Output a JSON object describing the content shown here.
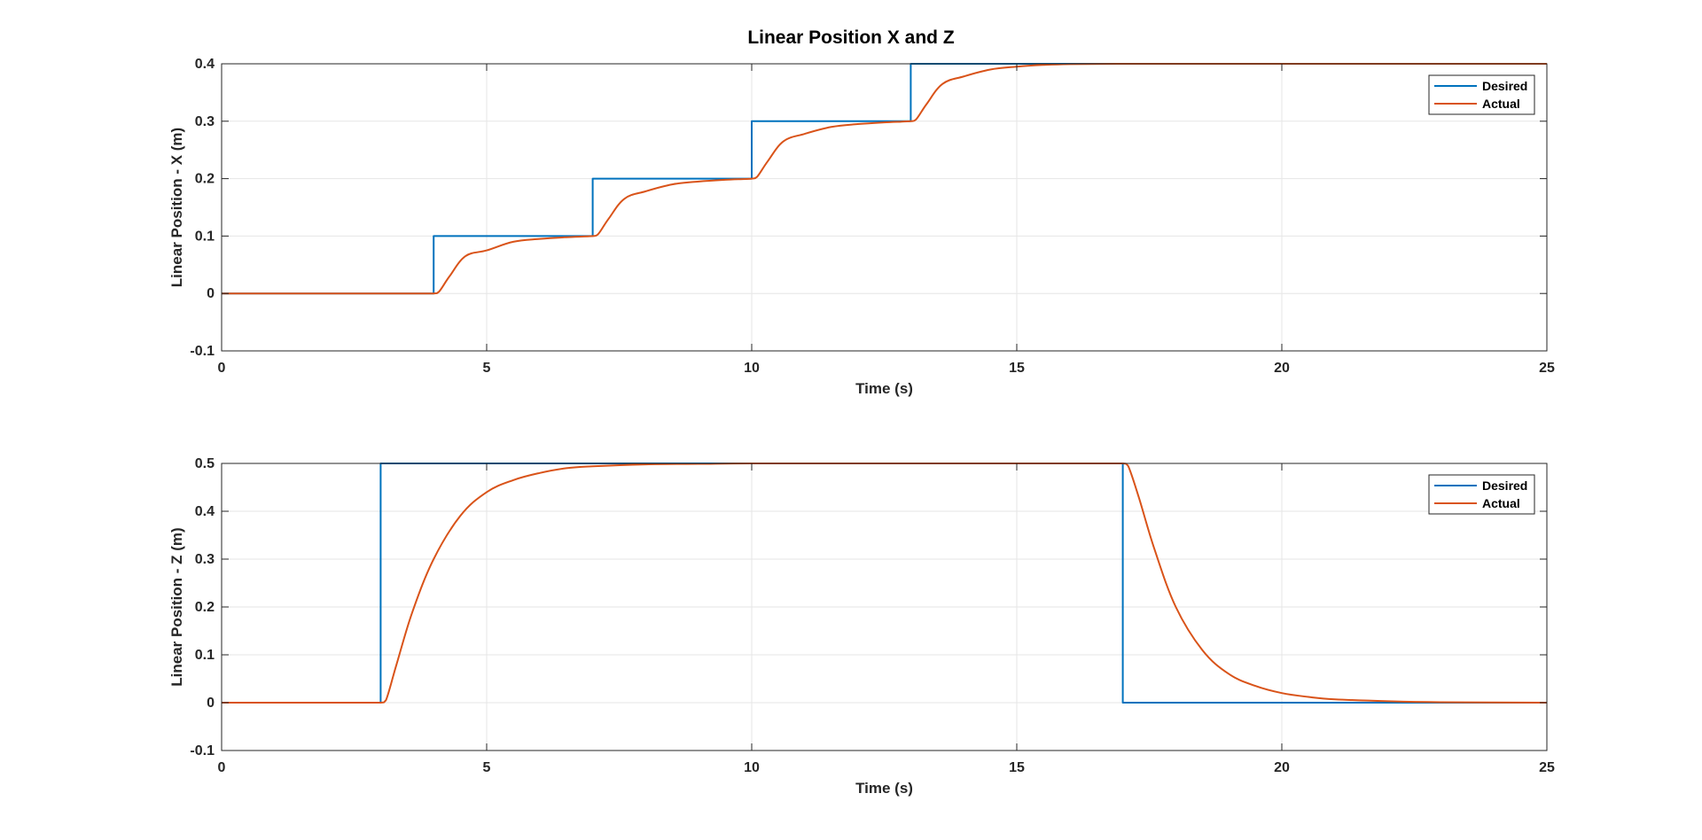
{
  "figure": {
    "title": "Linear Position X and Z"
  },
  "colors": {
    "desired": "#0072BD",
    "actual": "#D95319",
    "grid": "#e6e6e6",
    "axis": "#262626"
  },
  "chart_data": [
    {
      "type": "line",
      "title": "Linear Position X and Z",
      "xlabel": "Time (s)",
      "ylabel": "Linear Position - X (m)",
      "xlim": [
        0,
        25
      ],
      "ylim": [
        -0.1,
        0.4
      ],
      "xticks": [
        0,
        5,
        10,
        15,
        20,
        25
      ],
      "yticks": [
        -0.1,
        0,
        0.1,
        0.2,
        0.3,
        0.4
      ],
      "xtick_labels": [
        "0",
        "5",
        "10",
        "15",
        "20",
        "25"
      ],
      "ytick_labels": [
        "-0.1",
        "0",
        "0.1",
        "0.2",
        "0.3",
        "0.4"
      ],
      "grid": true,
      "legend_position": "top-right",
      "series": [
        {
          "name": "Desired",
          "x": [
            0,
            4,
            4,
            7,
            7,
            10,
            10,
            13,
            13,
            25
          ],
          "y": [
            0,
            0,
            0.1,
            0.1,
            0.2,
            0.2,
            0.3,
            0.3,
            0.4,
            0.4
          ]
        },
        {
          "name": "Actual",
          "x": [
            0,
            4,
            4.1,
            4.3,
            4.6,
            5.0,
            5.5,
            6.0,
            6.5,
            7.0,
            7.1,
            7.3,
            7.6,
            8.0,
            8.5,
            9.0,
            9.5,
            10.0,
            10.1,
            10.3,
            10.6,
            11.0,
            11.5,
            12.0,
            12.5,
            13.0,
            13.1,
            13.3,
            13.6,
            14.0,
            14.5,
            15.0,
            15.5,
            16.0,
            17.0,
            18.0,
            25
          ],
          "y": [
            0,
            0,
            0.003,
            0.03,
            0.065,
            0.075,
            0.09,
            0.095,
            0.098,
            0.1,
            0.103,
            0.13,
            0.165,
            0.178,
            0.19,
            0.195,
            0.198,
            0.2,
            0.203,
            0.23,
            0.265,
            0.278,
            0.29,
            0.295,
            0.298,
            0.3,
            0.303,
            0.33,
            0.365,
            0.378,
            0.39,
            0.395,
            0.398,
            0.3995,
            0.4,
            0.4,
            0.4
          ]
        }
      ]
    },
    {
      "type": "line",
      "title": "",
      "xlabel": "Time (s)",
      "ylabel": "Linear Position - Z (m)",
      "xlim": [
        0,
        25
      ],
      "ylim": [
        -0.1,
        0.5
      ],
      "xticks": [
        0,
        5,
        10,
        15,
        20,
        25
      ],
      "yticks": [
        -0.1,
        0,
        0.1,
        0.2,
        0.3,
        0.4,
        0.5
      ],
      "xtick_labels": [
        "0",
        "5",
        "10",
        "15",
        "20",
        "25"
      ],
      "ytick_labels": [
        "-0.1",
        "0",
        "0.1",
        "0.2",
        "0.3",
        "0.4",
        "0.5"
      ],
      "grid": true,
      "legend_position": "top-right",
      "series": [
        {
          "name": "Desired",
          "x": [
            0,
            3,
            3,
            17,
            17,
            25
          ],
          "y": [
            0,
            0,
            0.5,
            0.5,
            0,
            0
          ]
        },
        {
          "name": "Actual",
          "x": [
            0,
            3,
            3.1,
            3.3,
            3.6,
            4.0,
            4.5,
            5.0,
            5.5,
            6.0,
            6.5,
            7.0,
            8.0,
            9.0,
            10.0,
            12.0,
            14.0,
            17.0,
            17.1,
            17.3,
            17.6,
            18.0,
            18.5,
            19.0,
            19.5,
            20.0,
            20.5,
            21.0,
            22.0,
            23.0,
            25
          ],
          "y": [
            0,
            0,
            0.005,
            0.08,
            0.19,
            0.3,
            0.39,
            0.44,
            0.465,
            0.48,
            0.49,
            0.494,
            0.498,
            0.499,
            0.5,
            0.5,
            0.5,
            0.5,
            0.495,
            0.43,
            0.32,
            0.2,
            0.11,
            0.06,
            0.035,
            0.02,
            0.012,
            0.007,
            0.003,
            0.001,
            0
          ]
        }
      ]
    }
  ]
}
